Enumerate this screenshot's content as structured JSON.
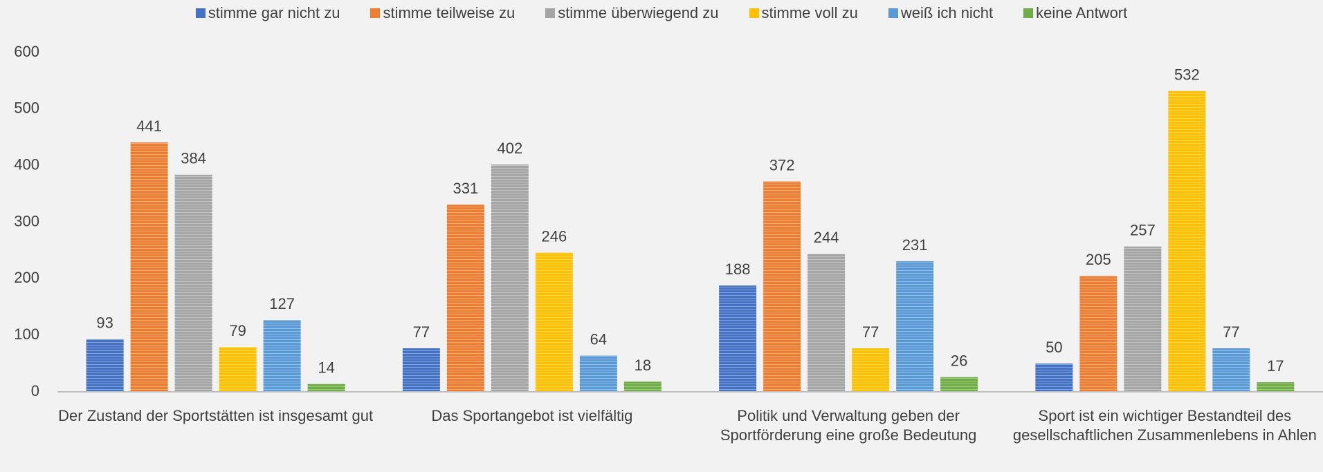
{
  "chart_data": {
    "type": "bar",
    "categories": [
      "Der Zustand der Sportstätten ist insgesamt gut",
      "Das Sportangebot ist vielfältig",
      "Politik und Verwaltung geben der Sportförderung eine große Bedeutung",
      "Sport ist ein wichtiger Bestandteil des gesellschaftlichen Zusammenlebens in Ahlen"
    ],
    "series": [
      {
        "name": "stimme gar nicht zu",
        "color": "#4472c4",
        "values": [
          93,
          77,
          188,
          50
        ]
      },
      {
        "name": "stimme teilweise zu",
        "color": "#ed7d31",
        "values": [
          441,
          331,
          372,
          205
        ]
      },
      {
        "name": "stimme überwiegend zu",
        "color": "#a5a5a5",
        "values": [
          384,
          402,
          244,
          257
        ]
      },
      {
        "name": "stimme voll zu",
        "color": "#ffc000",
        "values": [
          79,
          246,
          77,
          532
        ]
      },
      {
        "name": "weiß ich nicht",
        "color": "#5b9bd5",
        "values": [
          127,
          64,
          231,
          77
        ]
      },
      {
        "name": "keine Antwort",
        "color": "#70ad47",
        "values": [
          14,
          18,
          26,
          17
        ]
      }
    ],
    "ylim": [
      0,
      600
    ],
    "yticks": [
      0,
      100,
      200,
      300,
      400,
      500,
      600
    ],
    "grid": false,
    "legend": "top"
  }
}
